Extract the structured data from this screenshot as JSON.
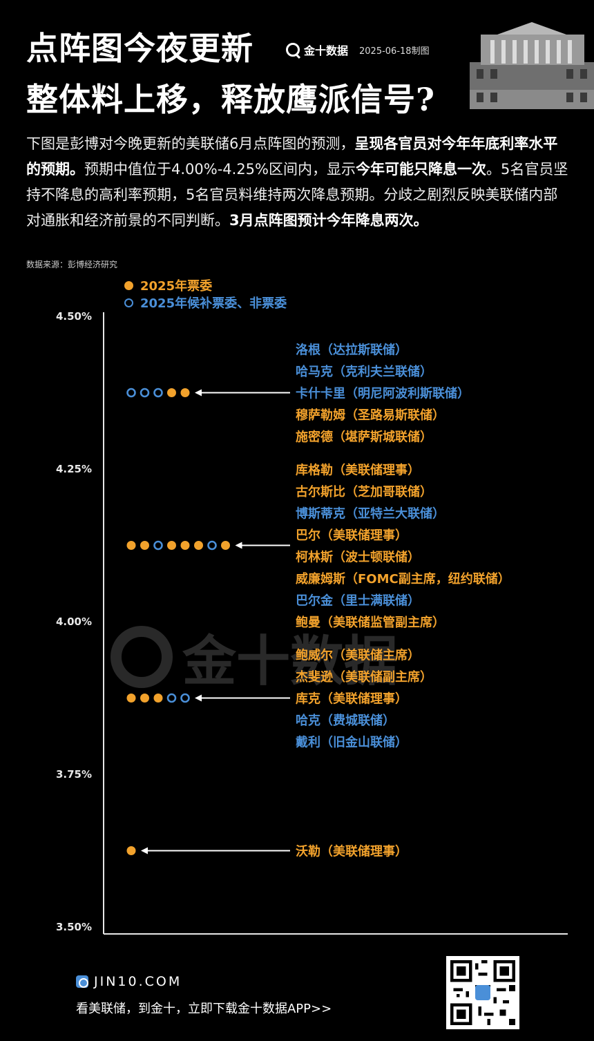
{
  "header": {
    "title_line1": "点阵图今夜更新",
    "title_line2": "整体料上移，释放鹰派信号?",
    "brand_name": "金十数据",
    "date": "2025-06-18制图"
  },
  "intro": {
    "p1": "下图是彭博对今晚更新的美联储6月点阵图的预测，",
    "b1": "呈现各官员对今年年底利率水平的预期。",
    "p2": "预期中值位于4.00%-4.25%区间内，显示",
    "b2": "今年可能只降息一次",
    "p3": "。5名官员坚持不降息的高利率预期，5名官员料维持两次降息预期。分歧之剧烈反映美联储内部对通胀和经济前景的不同判断。",
    "b3": "3月点阵图预计今年降息两次。"
  },
  "source": "数据来源：彭博经济研究",
  "legend": {
    "voter": "2025年票委",
    "alternate": "2025年候补票委、非票委"
  },
  "colors": {
    "voter": "#f2a22c",
    "alternate": "#4a8fd8",
    "background": "#000000",
    "axis": "#e8e8e8"
  },
  "chart_data": {
    "type": "scatter",
    "y_unit": "%",
    "ylim": [
      3.5,
      4.5
    ],
    "yticks": [
      "4.50%",
      "4.25%",
      "4.00%",
      "3.75%",
      "3.50%"
    ],
    "ytick_values": [
      4.5,
      4.25,
      4.0,
      3.75,
      3.5
    ],
    "groups": [
      {
        "rate": 4.375,
        "dots": [
          "alternate",
          "alternate",
          "alternate",
          "voter",
          "voter"
        ],
        "officials": [
          {
            "name": "洛根（达拉斯联储）",
            "type": "alternate"
          },
          {
            "name": "哈马克（克利夫兰联储）",
            "type": "alternate"
          },
          {
            "name": "卡什卡里（明尼阿波利斯联储）",
            "type": "alternate"
          },
          {
            "name": "穆萨勒姆（圣路易斯联储）",
            "type": "voter"
          },
          {
            "name": "施密德（堪萨斯城联储）",
            "type": "voter"
          }
        ]
      },
      {
        "rate": 4.125,
        "dots": [
          "voter",
          "voter",
          "alternate",
          "voter",
          "voter",
          "voter",
          "alternate",
          "voter"
        ],
        "officials": [
          {
            "name": "库格勒（美联储理事）",
            "type": "voter"
          },
          {
            "name": "古尔斯比（芝加哥联储）",
            "type": "voter"
          },
          {
            "name": "博斯蒂克（亚特兰大联储）",
            "type": "alternate"
          },
          {
            "name": "巴尔（美联储理事）",
            "type": "voter"
          },
          {
            "name": "柯林斯（波士顿联储）",
            "type": "voter"
          },
          {
            "name": "威廉姆斯（FOMC副主席，纽约联储）",
            "type": "voter"
          },
          {
            "name": "巴尔金（里士满联储）",
            "type": "alternate"
          },
          {
            "name": "鲍曼（美联储监管副主席）",
            "type": "voter"
          }
        ]
      },
      {
        "rate": 3.875,
        "dots": [
          "voter",
          "voter",
          "voter",
          "alternate",
          "alternate"
        ],
        "officials": [
          {
            "name": "鲍威尔（美联储主席）",
            "type": "voter"
          },
          {
            "name": "杰斐逊（美联储副主席）",
            "type": "voter"
          },
          {
            "name": "库克（美联储理事）",
            "type": "voter"
          },
          {
            "name": "哈克（费城联储）",
            "type": "alternate"
          },
          {
            "name": "戴利（旧金山联储）",
            "type": "alternate"
          }
        ]
      },
      {
        "rate": 3.625,
        "dots": [
          "voter"
        ],
        "officials": [
          {
            "name": "沃勒（美联储理事）",
            "type": "voter"
          }
        ]
      }
    ]
  },
  "watermark": "金十数据",
  "footer": {
    "site": "JIN10.COM",
    "slogan": "看美联储，到金十，立即下载金十数据APP>>"
  }
}
